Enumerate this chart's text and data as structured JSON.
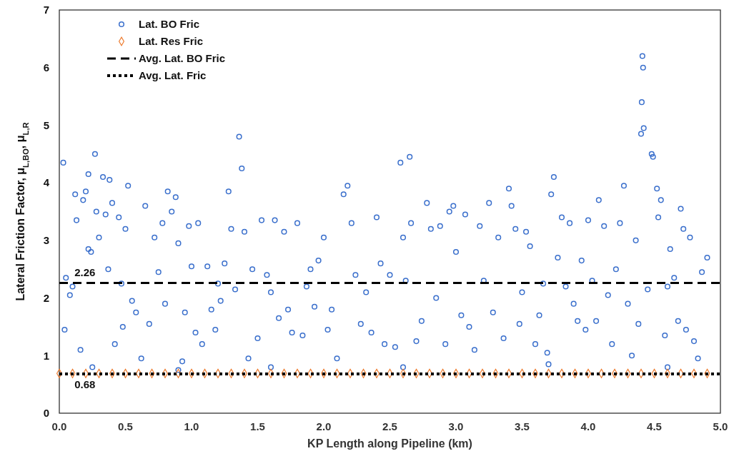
{
  "chart_data": {
    "type": "scatter",
    "xlabel": "KP Length along Pipeline (km)",
    "ylabel": "Lateral Friction Factor, μ$_{L,BO}$, μ$_{L,R}$",
    "xlim": [
      0,
      5
    ],
    "ylim": [
      0,
      7
    ],
    "xticks": [
      {
        "value": 0,
        "label": "0.0"
      },
      {
        "value": 0.5,
        "label": "0.5"
      },
      {
        "value": 1,
        "label": "1.0"
      },
      {
        "value": 1.5,
        "label": "1.5"
      },
      {
        "value": 2,
        "label": "2.0"
      },
      {
        "value": 2.5,
        "label": "2.5"
      },
      {
        "value": 3,
        "label": "3.0"
      },
      {
        "value": 3.5,
        "label": "3.5"
      },
      {
        "value": 4,
        "label": "4.0"
      },
      {
        "value": 4.5,
        "label": "4.5"
      },
      {
        "value": 5,
        "label": "5.0"
      }
    ],
    "yticks": [
      0,
      1,
      2,
      3,
      4,
      5,
      6,
      7
    ],
    "grid": false,
    "legend": "top left",
    "series": [
      {
        "name": "Lat. BO Fric",
        "marker": "circle",
        "color": "#3a6fcc",
        "x": [
          0.03,
          0.04,
          0.05,
          0.08,
          0.1,
          0.12,
          0.13,
          0.16,
          0.18,
          0.2,
          0.22,
          0.22,
          0.24,
          0.25,
          0.27,
          0.28,
          0.3,
          0.33,
          0.35,
          0.37,
          0.38,
          0.4,
          0.42,
          0.45,
          0.47,
          0.48,
          0.5,
          0.52,
          0.55,
          0.58,
          0.62,
          0.65,
          0.68,
          0.72,
          0.75,
          0.78,
          0.8,
          0.82,
          0.85,
          0.88,
          0.9,
          0.9,
          0.93,
          0.95,
          0.98,
          1.0,
          1.03,
          1.05,
          1.08,
          1.12,
          1.15,
          1.18,
          1.2,
          1.22,
          1.25,
          1.28,
          1.3,
          1.33,
          1.36,
          1.38,
          1.4,
          1.43,
          1.46,
          1.5,
          1.53,
          1.57,
          1.6,
          1.6,
          1.63,
          1.66,
          1.7,
          1.73,
          1.76,
          1.8,
          1.84,
          1.87,
          1.9,
          1.93,
          1.96,
          2.0,
          2.03,
          2.06,
          2.1,
          2.15,
          2.18,
          2.21,
          2.24,
          2.28,
          2.32,
          2.36,
          2.4,
          2.43,
          2.46,
          2.5,
          2.54,
          2.58,
          2.6,
          2.6,
          2.62,
          2.65,
          2.66,
          2.7,
          2.74,
          2.78,
          2.81,
          2.85,
          2.88,
          2.92,
          2.95,
          2.98,
          3.0,
          3.04,
          3.07,
          3.1,
          3.14,
          3.18,
          3.21,
          3.25,
          3.28,
          3.32,
          3.36,
          3.4,
          3.42,
          3.45,
          3.48,
          3.5,
          3.53,
          3.56,
          3.6,
          3.63,
          3.66,
          3.69,
          3.7,
          3.72,
          3.74,
          3.77,
          3.8,
          3.83,
          3.86,
          3.89,
          3.92,
          3.95,
          3.98,
          4.0,
          4.03,
          4.06,
          4.08,
          4.12,
          4.15,
          4.18,
          4.21,
          4.24,
          4.27,
          4.3,
          4.33,
          4.36,
          4.38,
          4.4,
          4.405,
          4.41,
          4.415,
          4.42,
          4.45,
          4.48,
          4.49,
          4.52,
          4.53,
          4.55,
          4.58,
          4.6,
          4.6,
          4.62,
          4.65,
          4.68,
          4.7,
          4.72,
          4.74,
          4.77,
          4.8,
          4.83,
          4.86,
          4.9
        ],
        "values": [
          4.35,
          1.45,
          2.35,
          2.05,
          2.2,
          3.8,
          3.35,
          1.1,
          3.7,
          3.85,
          4.15,
          2.85,
          2.8,
          0.8,
          4.5,
          3.5,
          3.05,
          4.1,
          3.45,
          2.5,
          4.05,
          3.65,
          1.2,
          3.4,
          2.25,
          1.5,
          3.2,
          3.95,
          1.95,
          1.75,
          0.95,
          3.6,
          1.55,
          3.05,
          2.45,
          3.3,
          1.9,
          3.85,
          3.5,
          3.75,
          2.95,
          0.75,
          0.9,
          1.75,
          3.25,
          2.55,
          1.4,
          3.3,
          1.2,
          2.55,
          1.8,
          1.45,
          2.25,
          1.95,
          2.6,
          3.85,
          3.2,
          2.15,
          4.8,
          4.25,
          3.15,
          0.95,
          2.5,
          1.3,
          3.35,
          2.4,
          2.1,
          0.8,
          3.35,
          1.65,
          3.15,
          1.8,
          1.4,
          3.3,
          1.35,
          2.2,
          2.5,
          1.85,
          2.65,
          3.05,
          1.45,
          1.8,
          0.95,
          3.8,
          3.95,
          3.3,
          2.4,
          1.55,
          2.1,
          1.4,
          3.4,
          2.6,
          1.2,
          2.4,
          1.15,
          4.35,
          3.05,
          0.8,
          2.3,
          4.45,
          3.3,
          1.25,
          1.6,
          3.65,
          3.2,
          2.0,
          3.25,
          1.2,
          3.5,
          3.6,
          2.8,
          1.7,
          3.45,
          1.5,
          1.1,
          3.25,
          2.3,
          3.65,
          1.75,
          3.05,
          1.3,
          3.9,
          3.6,
          3.2,
          1.55,
          2.1,
          3.15,
          2.9,
          1.2,
          1.7,
          2.25,
          1.05,
          0.85,
          3.8,
          4.1,
          2.7,
          3.4,
          2.2,
          3.3,
          1.9,
          1.6,
          2.65,
          1.45,
          3.35,
          2.3,
          1.6,
          3.7,
          3.25,
          2.05,
          1.2,
          2.5,
          3.3,
          3.95,
          1.9,
          1.0,
          3.0,
          1.55,
          4.85,
          5.4,
          6.2,
          6.0,
          4.95,
          2.15,
          4.5,
          4.45,
          3.9,
          3.4,
          3.7,
          1.35,
          2.2,
          0.8,
          2.85,
          2.35,
          1.6,
          3.55,
          3.2,
          1.45,
          3.05,
          1.25,
          0.95,
          2.45,
          2.7
        ]
      },
      {
        "name": "Lat. Res Fric",
        "marker": "diamond",
        "color": "#ed7d31",
        "x": [
          0.0,
          0.1,
          0.2,
          0.3,
          0.4,
          0.5,
          0.6,
          0.7,
          0.8,
          0.9,
          1.0,
          1.1,
          1.2,
          1.3,
          1.4,
          1.5,
          1.6,
          1.7,
          1.8,
          1.9,
          2.0,
          2.1,
          2.2,
          2.3,
          2.4,
          2.5,
          2.6,
          2.7,
          2.8,
          2.9,
          3.0,
          3.1,
          3.2,
          3.3,
          3.4,
          3.5,
          3.6,
          3.7,
          3.8,
          3.9,
          4.0,
          4.1,
          4.2,
          4.3,
          4.4,
          4.5,
          4.6,
          4.7,
          4.8,
          4.9
        ],
        "values": [
          0.69,
          0.69,
          0.69,
          0.69,
          0.69,
          0.69,
          0.69,
          0.69,
          0.69,
          0.69,
          0.69,
          0.69,
          0.69,
          0.69,
          0.69,
          0.69,
          0.69,
          0.69,
          0.69,
          0.69,
          0.69,
          0.69,
          0.69,
          0.69,
          0.69,
          0.69,
          0.69,
          0.69,
          0.69,
          0.69,
          0.69,
          0.69,
          0.69,
          0.69,
          0.69,
          0.69,
          0.69,
          0.69,
          0.69,
          0.69,
          0.69,
          0.69,
          0.69,
          0.69,
          0.69,
          0.69,
          0.69,
          0.69,
          0.69,
          0.69
        ]
      },
      {
        "name": "Avg. Lat. BO Fric",
        "type": "line",
        "line_style": "dashed",
        "color": "#000000",
        "x": [
          0,
          5
        ],
        "values": [
          2.26,
          2.26
        ]
      },
      {
        "name": "Avg. Lat. Fric",
        "type": "line",
        "line_style": "dotted",
        "color": "#000000",
        "x": [
          0,
          5
        ],
        "values": [
          0.68,
          0.68
        ]
      }
    ],
    "annotations": [
      {
        "text": "2.26",
        "x": 0.05,
        "y": 2.26
      },
      {
        "text": "0.68",
        "x": 0.05,
        "y": 0.68
      }
    ]
  }
}
